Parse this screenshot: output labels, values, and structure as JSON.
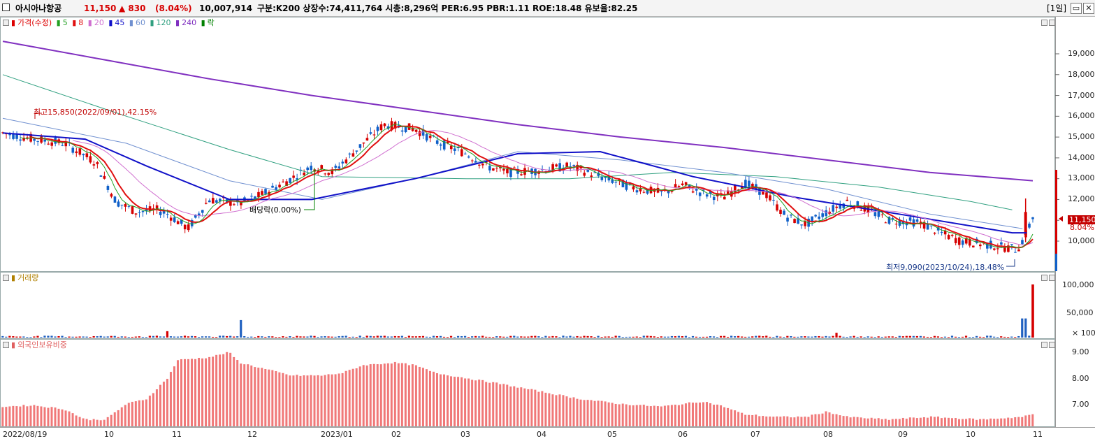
{
  "titlebar": {
    "stock_name": "아시아나항공",
    "price": "11,150",
    "change": "▲ 830",
    "change_pct": "(8.04%)",
    "volume": "10,007,914",
    "market_info": "구분:K200 상장수:74,411,764 시총:8,296억 PER:6.95 PBR:1.11 ROE:18.48 유보율:82.25",
    "period": "[1일]",
    "minimize_btn": "▭",
    "close_btn": "✕",
    "up_color": "#d60000"
  },
  "price_panel": {
    "legend": {
      "title": "가격(수정)",
      "ma5": "5",
      "ma8": "8",
      "ma20": "20",
      "ma45": "45",
      "ma60": "60",
      "ma120": "120",
      "ma240": "240",
      "ex_div": "락"
    },
    "colors": {
      "ma5": "#22a022",
      "ma8": "#e01010",
      "ma20": "#d070d0",
      "ma45": "#1010c8",
      "ma60": "#7090d0",
      "ma120": "#30a080",
      "ma240": "#8030c0"
    },
    "y_ticks": [
      "19,000",
      "18,000",
      "17,000",
      "16,000",
      "15,000",
      "14,000",
      "13,000",
      "12,000",
      "11,000",
      "10,000"
    ],
    "high_label": "최고15,850(2022/09/01),42.15%",
    "low_label": "최저9,090(2023/10/24),18.48%",
    "dividend_label": "배당락(0.00%)",
    "price_tag": "11,150",
    "pct_tag": "8.04%"
  },
  "volume_panel": {
    "legend": "거래량",
    "y_ticks": [
      "100,000",
      "50,000"
    ],
    "unit": "× 100"
  },
  "foreign_panel": {
    "legend": "외국인보유비중",
    "y_ticks": [
      "9.00",
      "8.00",
      "7.00"
    ]
  },
  "x_axis": [
    "2022/08/19",
    "10",
    "11",
    "12",
    "2023/01",
    "02",
    "03",
    "04",
    "05",
    "06",
    "07",
    "08",
    "09",
    "10",
    "11"
  ],
  "chart_data": {
    "type": "candlestick",
    "price_y_range": [
      9000,
      20000
    ],
    "ma_lines": {
      "ma240": [
        [
          0,
          19600
        ],
        [
          0.1,
          18700
        ],
        [
          0.2,
          17800
        ],
        [
          0.3,
          17000
        ],
        [
          0.4,
          16300
        ],
        [
          0.5,
          15600
        ],
        [
          0.6,
          15000
        ],
        [
          0.7,
          14500
        ],
        [
          0.8,
          13900
        ],
        [
          0.9,
          13300
        ],
        [
          1.0,
          12900
        ]
      ],
      "ma120": [
        [
          0,
          18000
        ],
        [
          0.12,
          16000
        ],
        [
          0.22,
          14400
        ],
        [
          0.31,
          13100
        ],
        [
          0.45,
          13000
        ],
        [
          0.55,
          13000
        ],
        [
          0.65,
          13300
        ],
        [
          0.75,
          13100
        ],
        [
          0.85,
          12600
        ],
        [
          0.94,
          11900
        ],
        [
          0.98,
          11500
        ]
      ],
      "ma60": [
        [
          0,
          15900
        ],
        [
          0.12,
          14700
        ],
        [
          0.22,
          12900
        ],
        [
          0.31,
          12000
        ],
        [
          0.4,
          13000
        ],
        [
          0.5,
          14300
        ],
        [
          0.6,
          13900
        ],
        [
          0.7,
          13300
        ],
        [
          0.8,
          12500
        ],
        [
          0.9,
          11300
        ],
        [
          0.99,
          10600
        ]
      ],
      "ma45": [
        [
          0,
          15200
        ],
        [
          0.08,
          14900
        ],
        [
          0.14,
          13600
        ],
        [
          0.22,
          12000
        ],
        [
          0.3,
          12000
        ],
        [
          0.4,
          13000
        ],
        [
          0.5,
          14200
        ],
        [
          0.58,
          14300
        ],
        [
          0.67,
          13100
        ],
        [
          0.77,
          12100
        ],
        [
          0.87,
          11300
        ],
        [
          0.98,
          10400
        ],
        [
          0.994,
          10400
        ]
      ]
    },
    "last_close": 11150,
    "period_high": 15850,
    "period_low": 9090,
    "volume_max_value": 100007,
    "foreign_ratio_range": [
      6.3,
      9.4
    ]
  }
}
